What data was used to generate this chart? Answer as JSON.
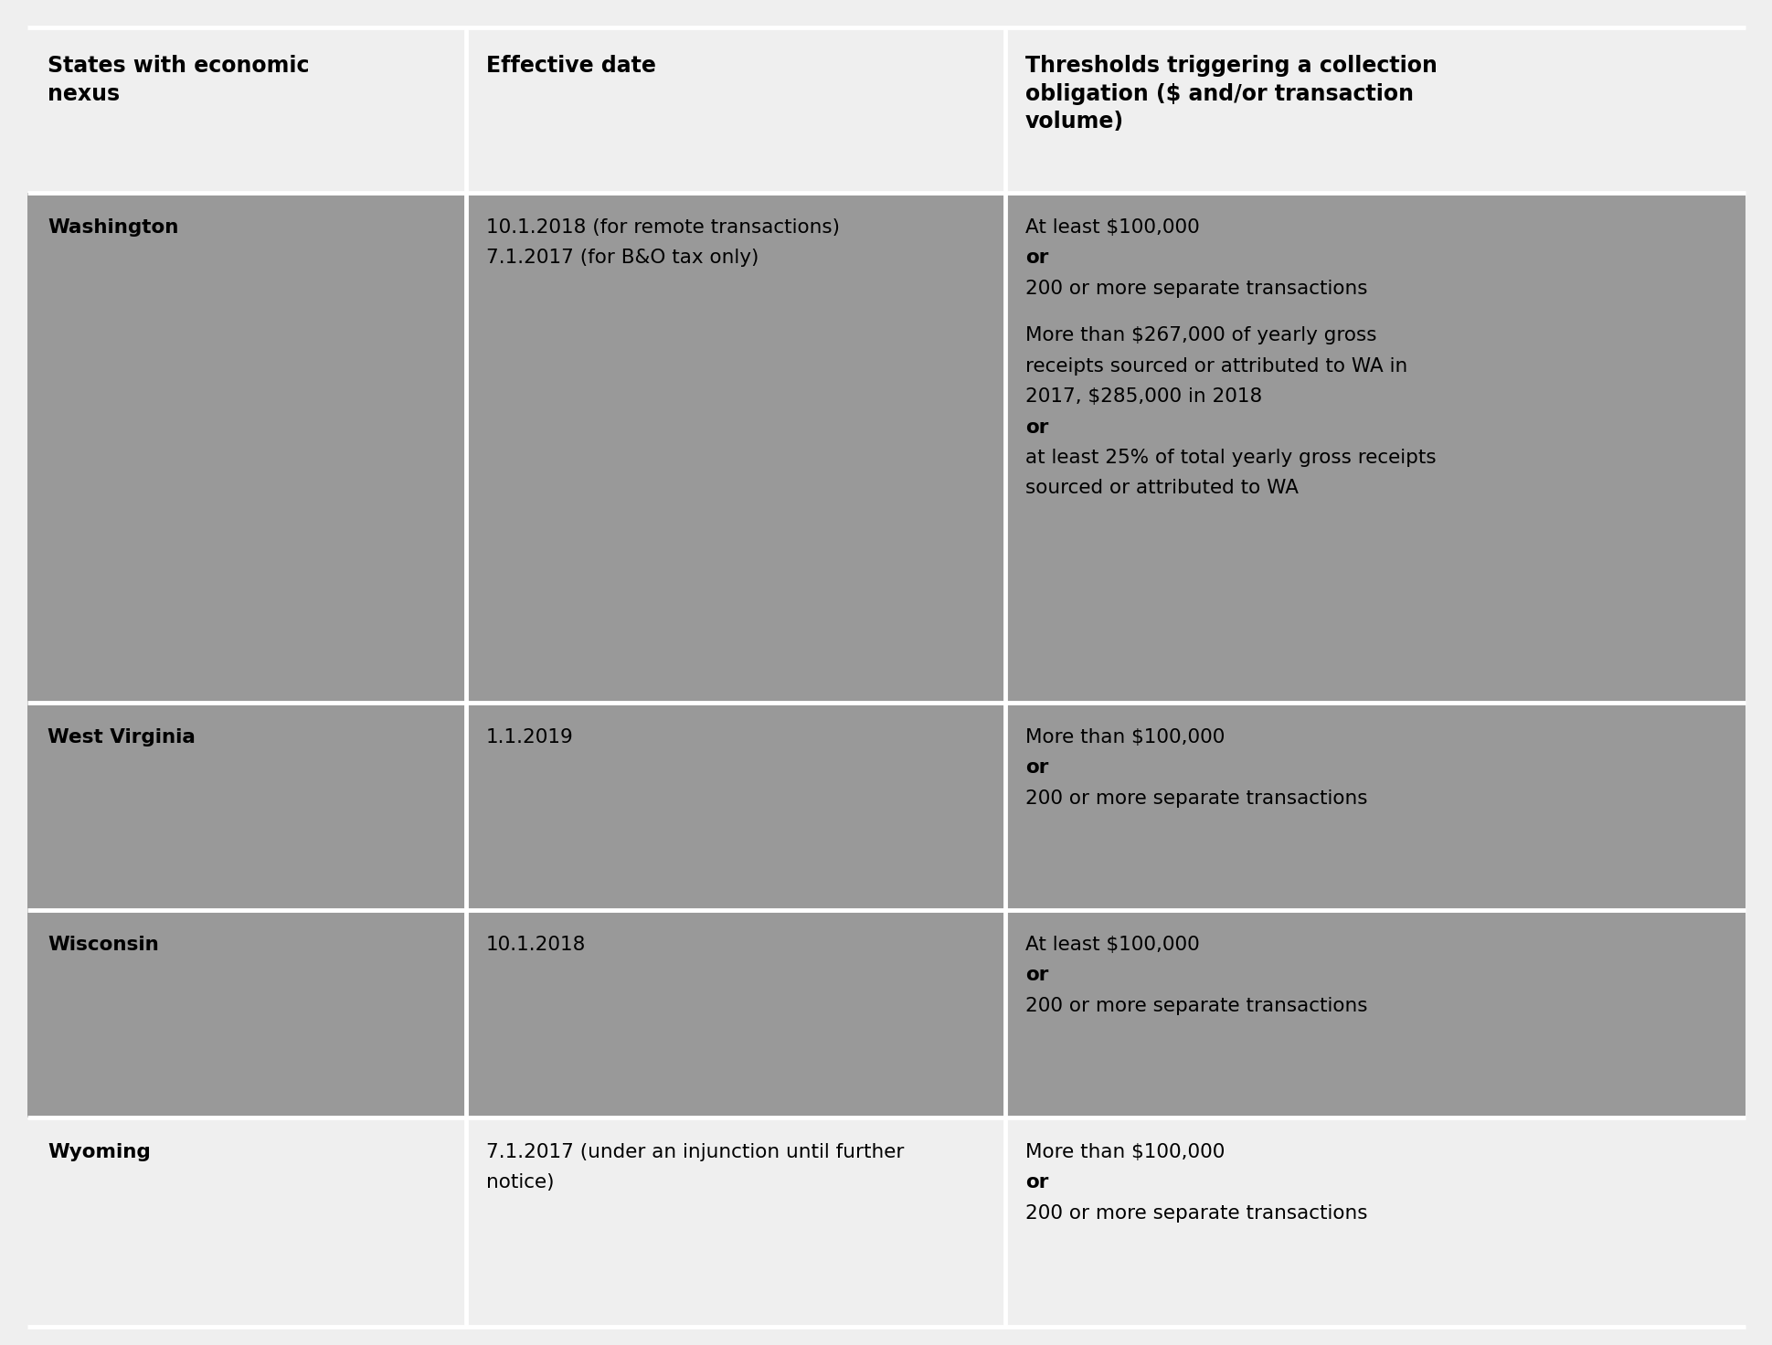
{
  "header_bg": "#efefef",
  "row_bg_dark": "#999999",
  "row_bg_light": "#efefef",
  "text_color": "#000000",
  "header_text_color": "#000000",
  "col1_header": "States with economic\nnexus",
  "col2_header": "Effective date",
  "col3_header": "Thresholds triggering a collection\nobligation ($ and/or transaction\nvolume)",
  "rows": [
    {
      "state": "Washington",
      "date_lines": [
        {
          "text": "10.1.2018 (for remote transactions)",
          "bold": false
        },
        {
          "text": "7.1.2017 (for B&O tax only)",
          "bold": false
        }
      ],
      "threshold_lines": [
        {
          "text": "At least $100,000",
          "bold": false
        },
        {
          "text": "or",
          "bold": true
        },
        {
          "text": "200 or more separate transactions",
          "bold": false
        },
        {
          "text": "",
          "bold": false
        },
        {
          "text": "More than $267,000 of yearly gross",
          "bold": false
        },
        {
          "text": "receipts sourced or attributed to WA in",
          "bold": false
        },
        {
          "text": "2017, $285,000 in 2018",
          "bold": false
        },
        {
          "text": "or",
          "bold": true
        },
        {
          "text": "at least 25% of total yearly gross receipts",
          "bold": false
        },
        {
          "text": "sourced or attributed to WA",
          "bold": false
        }
      ],
      "bg": "#999999"
    },
    {
      "state": "West Virginia",
      "date_lines": [
        {
          "text": "1.1.2019",
          "bold": false
        }
      ],
      "threshold_lines": [
        {
          "text": "More than $100,000",
          "bold": false
        },
        {
          "text": "or",
          "bold": true
        },
        {
          "text": "200 or more separate transactions",
          "bold": false
        }
      ],
      "bg": "#999999"
    },
    {
      "state": "Wisconsin",
      "date_lines": [
        {
          "text": "10.1.2018",
          "bold": false
        }
      ],
      "threshold_lines": [
        {
          "text": "At least $100,000",
          "bold": false
        },
        {
          "text": "or",
          "bold": true
        },
        {
          "text": "200 or more separate transactions",
          "bold": false
        }
      ],
      "bg": "#999999"
    },
    {
      "state": "Wyoming",
      "date_lines": [
        {
          "text": "7.1.2017 (under an injunction until further",
          "bold": false
        },
        {
          "text": "notice)",
          "bold": false
        }
      ],
      "threshold_lines": [
        {
          "text": "More than $100,000",
          "bold": false
        },
        {
          "text": "or",
          "bold": true
        },
        {
          "text": "200 or more separate transactions",
          "bold": false
        }
      ],
      "bg": "#efefef"
    }
  ],
  "font_size_header": 17,
  "font_size_body": 15.5,
  "line_color": "#ffffff",
  "line_width": 3.5,
  "fig_width": 19.4,
  "fig_height": 14.72,
  "dpi": 100
}
